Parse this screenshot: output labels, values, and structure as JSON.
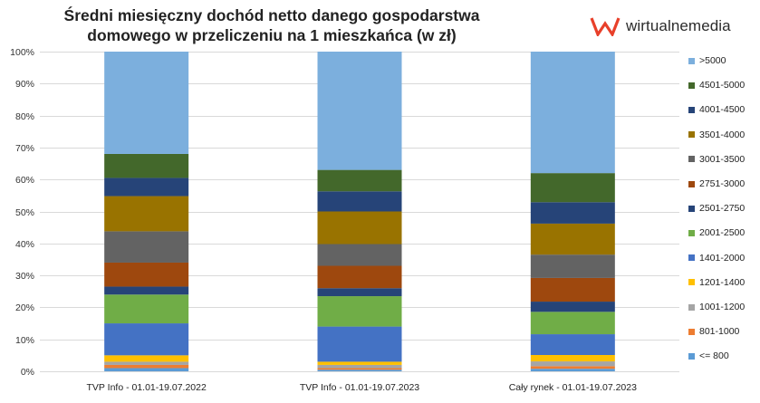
{
  "chart_data": {
    "type": "bar",
    "stacked": true,
    "title_lines": [
      "Średni miesięczny dochód netto danego gospodarstwa",
      "domowego w przeliczeniu na 1 mieszkańca (w zł)"
    ],
    "categories": [
      "TVP Info - 01.01-19.07.2022",
      "TVP Info - 01.01-19.07.2023",
      "Cały rynek - 01.01-19.07.2023"
    ],
    "ylim": [
      0,
      100
    ],
    "yticks": [
      0,
      10,
      20,
      30,
      40,
      50,
      60,
      70,
      80,
      90,
      100
    ],
    "ytick_labels": [
      "0%",
      "10%",
      "20%",
      "30%",
      "40%",
      "50%",
      "60%",
      "70%",
      "80%",
      "90%",
      "100%"
    ],
    "grid": true,
    "legend_position": "right",
    "series": [
      {
        "name": "<= 800",
        "color": "#5b9bd5",
        "values": [
          1.0,
          0.5,
          0.8
        ]
      },
      {
        "name": "801-1000",
        "color": "#ed7d31",
        "values": [
          1.0,
          0.5,
          0.8
        ]
      },
      {
        "name": "1001-1200",
        "color": "#a5a5a5",
        "values": [
          1.0,
          1.0,
          1.5
        ]
      },
      {
        "name": "1201-1400",
        "color": "#ffc000",
        "values": [
          2.0,
          1.0,
          2.0
        ]
      },
      {
        "name": "1401-2000",
        "color": "#4472c4",
        "values": [
          10.0,
          11.0,
          6.5
        ]
      },
      {
        "name": "2001-2500",
        "color": "#70ad47",
        "values": [
          9.0,
          9.5,
          7.0
        ]
      },
      {
        "name": "2501-2750",
        "color": "#264478",
        "values": [
          2.5,
          2.5,
          3.2
        ]
      },
      {
        "name": "2751-3000",
        "color": "#9e480e",
        "values": [
          7.5,
          7.0,
          7.4
        ]
      },
      {
        "name": "3001-3500",
        "color": "#636363",
        "values": [
          9.8,
          6.8,
          7.3
        ]
      },
      {
        "name": "3501-4000",
        "color": "#997300",
        "values": [
          11.0,
          10.2,
          9.7
        ]
      },
      {
        "name": "4001-4500",
        "color": "#264478",
        "values": [
          5.7,
          6.3,
          6.7
        ]
      },
      {
        "name": "4501-5000",
        "color": "#43682b",
        "values": [
          7.5,
          6.7,
          9.1
        ]
      },
      {
        "name": ">5000",
        "color": "#7cafdd",
        "values": [
          32.0,
          37.0,
          38.0
        ]
      }
    ]
  },
  "brand": {
    "name": "wirtualnemedia",
    "accent": "#e8402a"
  }
}
